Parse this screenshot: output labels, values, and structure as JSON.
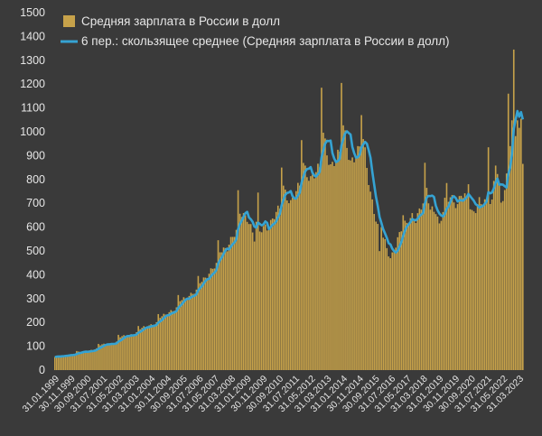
{
  "colors": {
    "background": "#3a3a3a",
    "bar": "#c7a24a",
    "bar_edge": "#a8852f",
    "line": "#35a3d3",
    "text": "#e6e6e6",
    "grid": "#4a4a4a"
  },
  "chart_data": {
    "type": "bar",
    "title": "",
    "xlabel": "",
    "ylabel": "",
    "ylim": [
      0,
      1500
    ],
    "yticks": [
      0,
      100,
      200,
      300,
      400,
      500,
      600,
      700,
      800,
      900,
      1000,
      1100,
      1200,
      1300,
      1400,
      1500
    ],
    "grid": false,
    "legend_position": "top-left",
    "x_tick_labels": [
      "31.01.1999",
      "30.11.1999",
      "30.09.2000",
      "31.07.2001",
      "31.05.2002",
      "31.03.2003",
      "31.01.2004",
      "30.11.2004",
      "30.09.2005",
      "31.07.2006",
      "31.05.2007",
      "31.03.2008",
      "31.01.2009",
      "30.11.2009",
      "30.09.2010",
      "31.07.2011",
      "31.05.2012",
      "31.03.2013",
      "31.01.2014",
      "30.11.2014",
      "30.09.2015",
      "31.07.2016",
      "31.05.2017",
      "31.03.2018",
      "31.01.2019",
      "30.11.2019",
      "30.09.2020",
      "31.07.2021",
      "31.05.2022",
      "31.03.2023"
    ],
    "series": [
      {
        "name": "Средняя зарплата в России в долл",
        "kind": "bar",
        "anchors": [
          [
            0,
            55
          ],
          [
            6,
            62
          ],
          [
            11,
            68
          ],
          [
            12,
            78
          ],
          [
            17,
            75
          ],
          [
            20,
            85
          ],
          [
            23,
            90
          ],
          [
            24,
            105
          ],
          [
            29,
            108
          ],
          [
            34,
            118
          ],
          [
            35,
            140
          ],
          [
            40,
            142
          ],
          [
            45,
            158
          ],
          [
            46,
            175
          ],
          [
            51,
            180
          ],
          [
            56,
            200
          ],
          [
            57,
            225
          ],
          [
            62,
            232
          ],
          [
            67,
            262
          ],
          [
            68,
            300
          ],
          [
            73,
            298
          ],
          [
            78,
            335
          ],
          [
            79,
            375
          ],
          [
            84,
            388
          ],
          [
            89,
            445
          ],
          [
            90,
            510
          ],
          [
            95,
            510
          ],
          [
            100,
            580
          ],
          [
            101,
            680
          ],
          [
            106,
            640
          ],
          [
            110,
            545
          ],
          [
            112,
            680
          ],
          [
            113,
            590
          ],
          [
            116,
            610
          ],
          [
            118,
            600
          ],
          [
            124,
            680
          ],
          [
            125,
            790
          ],
          [
            130,
            700
          ],
          [
            135,
            770
          ],
          [
            136,
            880
          ],
          [
            141,
            805
          ],
          [
            146,
            840
          ],
          [
            147,
            1020
          ],
          [
            152,
            860
          ],
          [
            157,
            900
          ],
          [
            158,
            1050
          ],
          [
            163,
            880
          ],
          [
            168,
            920
          ],
          [
            169,
            1010
          ],
          [
            174,
            750
          ],
          [
            178,
            600
          ],
          [
            179,
            490
          ],
          [
            180,
            570
          ],
          [
            182,
            530
          ],
          [
            185,
            470
          ],
          [
            188,
            530
          ],
          [
            191,
            590
          ],
          [
            194,
            610
          ],
          [
            197,
            650
          ],
          [
            199,
            640
          ],
          [
            203,
            700
          ],
          [
            204,
            790
          ],
          [
            207,
            670
          ],
          [
            210,
            680
          ],
          [
            212,
            610
          ],
          [
            215,
            700
          ],
          [
            218,
            720
          ],
          [
            222,
            700
          ],
          [
            224,
            750
          ],
          [
            227,
            710
          ],
          [
            230,
            650
          ],
          [
            232,
            680
          ],
          [
            234,
            720
          ],
          [
            238,
            700
          ],
          [
            241,
            690
          ],
          [
            243,
            880
          ],
          [
            246,
            720
          ],
          [
            248,
            750
          ],
          [
            250,
            870
          ],
          [
            252,
            1010
          ],
          [
            254,
            1000
          ],
          [
            255,
            1050
          ],
          [
            257,
            950
          ],
          [
            258,
            900
          ]
        ],
        "spikes": [
          [
            12,
            80
          ],
          [
            24,
            110
          ],
          [
            35,
            148
          ],
          [
            46,
            185
          ],
          [
            57,
            235
          ],
          [
            68,
            315
          ],
          [
            79,
            395
          ],
          [
            90,
            545
          ],
          [
            101,
            755
          ],
          [
            112,
            745
          ],
          [
            125,
            850
          ],
          [
            136,
            965
          ],
          [
            147,
            1185
          ],
          [
            158,
            1205
          ],
          [
            169,
            1070
          ],
          [
            180,
            600
          ],
          [
            192,
            650
          ],
          [
            204,
            870
          ],
          [
            216,
            785
          ],
          [
            228,
            780
          ],
          [
            239,
            935
          ],
          [
            250,
            1160
          ],
          [
            253,
            1345
          ],
          [
            257,
            1055
          ]
        ]
      },
      {
        "name": "6 пер.: скользящее среднее (Средняя зарплата в России в долл)",
        "kind": "line",
        "window": 6
      }
    ]
  },
  "legend": {
    "bar_label": "Средняя зарплата в России в долл",
    "line_label": "6 пер.: скользящее среднее (Средняя зарплата в России в долл)"
  }
}
